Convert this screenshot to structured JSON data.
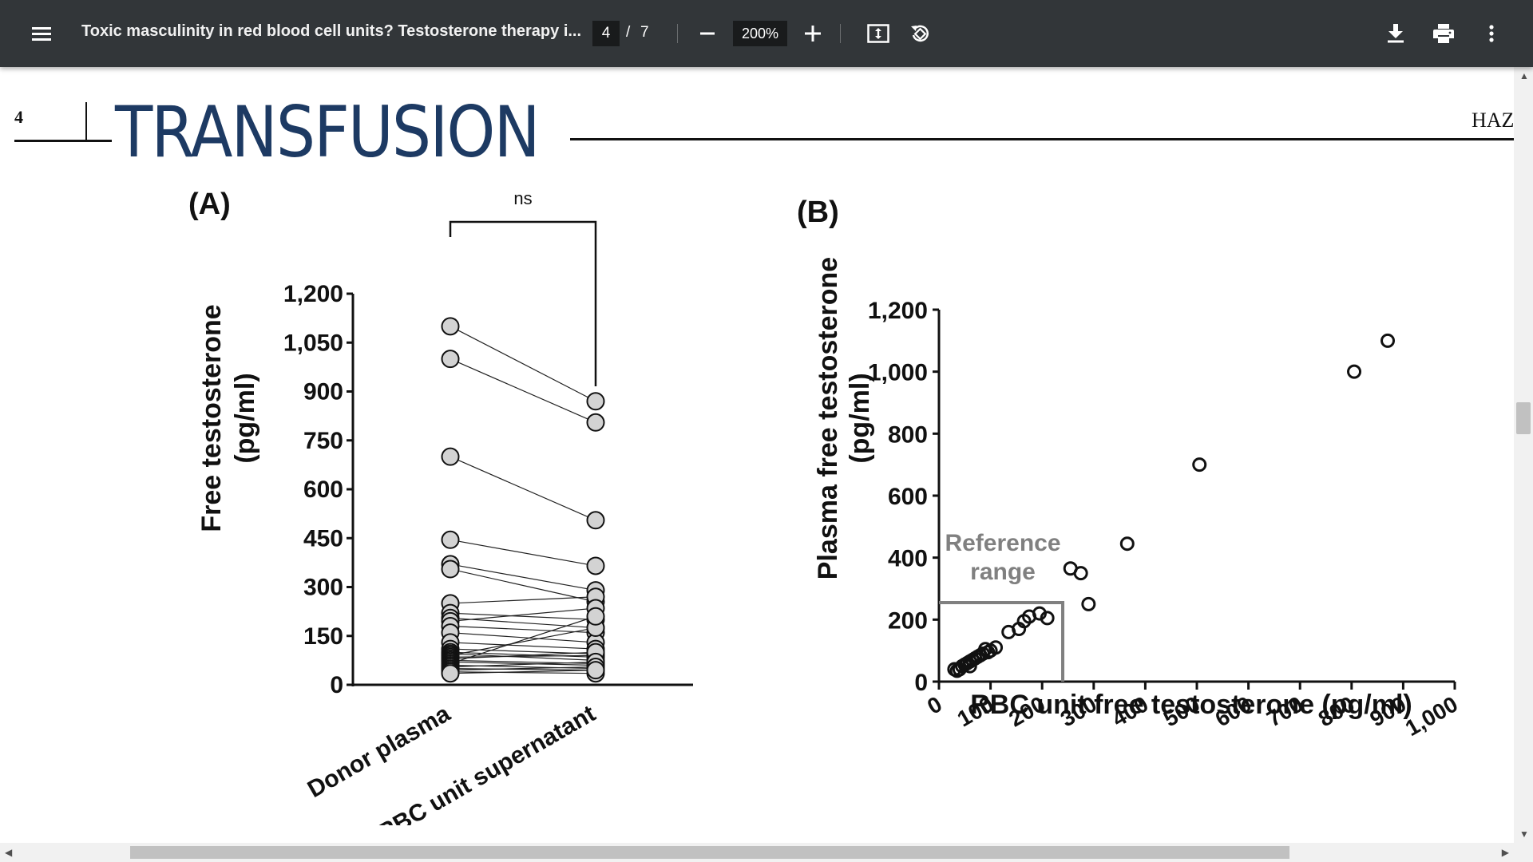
{
  "toolbar": {
    "title": "Toxic masculinity in red blood cell units? Testosterone therapy i...",
    "current_page": "4",
    "separator": "/",
    "total_pages": "7",
    "zoom": "200%"
  },
  "page_header": {
    "page_number": "4",
    "journal": "TRANSFUSION",
    "author_fragment": "HAZ"
  },
  "chart_data": [
    {
      "panel": "(A)",
      "type": "scatter",
      "categories": [
        "Donor plasma",
        "RBC unit supernatant"
      ],
      "ylabel": "Free testosterone (pg/ml)",
      "ylabel_lines": [
        "Free testosterone",
        "(pg/ml)"
      ],
      "ylim": [
        0,
        1200
      ],
      "yticks": [
        "0",
        "150",
        "300",
        "450",
        "600",
        "750",
        "900",
        "1,050",
        "1,200"
      ],
      "ytick_values": [
        0,
        150,
        300,
        450,
        600,
        750,
        900,
        1050,
        1200
      ],
      "significance": "ns",
      "paired": [
        [
          1100,
          870
        ],
        [
          1000,
          805
        ],
        [
          700,
          505
        ],
        [
          445,
          365
        ],
        [
          370,
          290
        ],
        [
          355,
          255
        ],
        [
          250,
          270
        ],
        [
          220,
          200
        ],
        [
          205,
          175
        ],
        [
          195,
          235
        ],
        [
          180,
          160
        ],
        [
          160,
          130
        ],
        [
          130,
          110
        ],
        [
          110,
          95
        ],
        [
          100,
          85
        ],
        [
          95,
          75
        ],
        [
          90,
          175
        ],
        [
          85,
          90
        ],
        [
          80,
          100
        ],
        [
          75,
          65
        ],
        [
          70,
          60
        ],
        [
          65,
          210
        ],
        [
          60,
          50
        ],
        [
          55,
          70
        ],
        [
          50,
          45
        ],
        [
          45,
          55
        ],
        [
          40,
          35
        ],
        [
          35,
          45
        ]
      ]
    },
    {
      "panel": "(B)",
      "type": "scatter",
      "xlabel": "RBC unit free testosterone (pg/ml)",
      "ylabel": "Plasma free testosterone (pg/ml)",
      "ylabel_lines": [
        "Plasma free testosterone",
        "(pg/ml)"
      ],
      "xlim": [
        0,
        1000
      ],
      "ylim": [
        0,
        1200
      ],
      "xticks": [
        "0",
        "100",
        "200",
        "300",
        "400",
        "500",
        "600",
        "700",
        "800",
        "900",
        "1,000"
      ],
      "xtick_values": [
        0,
        100,
        200,
        300,
        400,
        500,
        600,
        700,
        800,
        900,
        1000
      ],
      "yticks": [
        "0",
        "200",
        "400",
        "600",
        "800",
        "1,000",
        "1,200"
      ],
      "ytick_values": [
        0,
        200,
        400,
        600,
        800,
        1000,
        1200
      ],
      "reference_range_lines": [
        "Reference",
        "range"
      ],
      "reference_range": {
        "x_max": 240,
        "y_max": 255
      },
      "points": [
        [
          870,
          1100
        ],
        [
          805,
          1000
        ],
        [
          505,
          700
        ],
        [
          365,
          445
        ],
        [
          255,
          365
        ],
        [
          275,
          350
        ],
        [
          290,
          250
        ],
        [
          210,
          205
        ],
        [
          195,
          220
        ],
        [
          175,
          210
        ],
        [
          165,
          195
        ],
        [
          155,
          170
        ],
        [
          135,
          160
        ],
        [
          110,
          110
        ],
        [
          100,
          100
        ],
        [
          95,
          95
        ],
        [
          90,
          105
        ],
        [
          85,
          90
        ],
        [
          80,
          85
        ],
        [
          75,
          80
        ],
        [
          70,
          75
        ],
        [
          65,
          70
        ],
        [
          60,
          65
        ],
        [
          55,
          60
        ],
        [
          50,
          55
        ],
        [
          45,
          50
        ],
        [
          40,
          40
        ],
        [
          35,
          35
        ],
        [
          30,
          40
        ],
        [
          60,
          50
        ]
      ]
    }
  ]
}
